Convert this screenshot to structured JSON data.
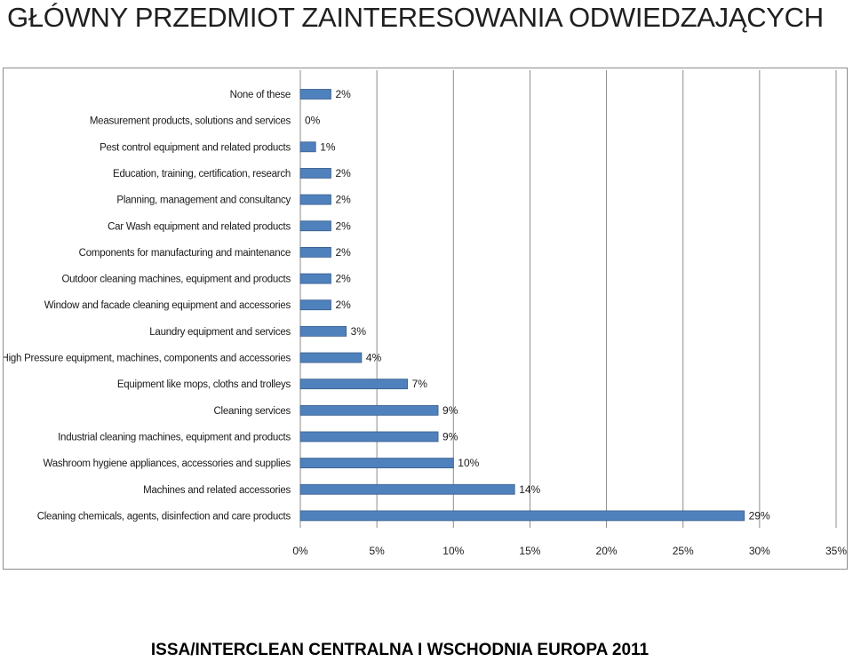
{
  "title": "GŁÓWNY PRZEDMIOT ZAINTERESOWANIA ODWIEDZAJĄCYCH",
  "footer": "ISSA/INTERCLEAN CENTRALNA I WSCHODNIA EUROPA 2011",
  "chart_data": {
    "type": "bar",
    "orientation": "horizontal",
    "categories": [
      "None of these",
      "Measurement products, solutions and services",
      "Pest control equipment and related products",
      "Education, training, certification, research",
      "Planning, management and consultancy",
      "Car Wash equipment and related products",
      "Components for manufacturing and maintenance",
      "Outdoor cleaning machines, equipment and products",
      "Window and facade cleaning equipment and accessories",
      "Laundry equipment and services",
      "High Pressure equipment, machines, components and accessories",
      "Equipment like mops, cloths and trolleys",
      "Cleaning services",
      "Industrial cleaning machines, equipment and products",
      "Washroom hygiene appliances, accessories and supplies",
      "Machines and related accessories",
      "Cleaning chemicals, agents, disinfection and care products"
    ],
    "values": [
      2,
      0,
      1,
      2,
      2,
      2,
      2,
      2,
      2,
      3,
      4,
      7,
      9,
      9,
      10,
      14,
      29
    ],
    "data_labels": [
      "2%",
      "0%",
      "1%",
      "2%",
      "2%",
      "2%",
      "2%",
      "2%",
      "2%",
      "3%",
      "4%",
      "7%",
      "9%",
      "9%",
      "10%",
      "14%",
      "29%"
    ],
    "xlim": [
      0,
      35
    ],
    "x_ticks": [
      0,
      5,
      10,
      15,
      20,
      25,
      30,
      35
    ],
    "x_tick_labels": [
      "0%",
      "5%",
      "10%",
      "15%",
      "20%",
      "25%",
      "30%",
      "35%"
    ],
    "grid": "vertical",
    "legend": "none",
    "bar_color": "#4f81bd",
    "bar_border_color": "#385d8a",
    "grid_color": "#8c8c8c"
  }
}
